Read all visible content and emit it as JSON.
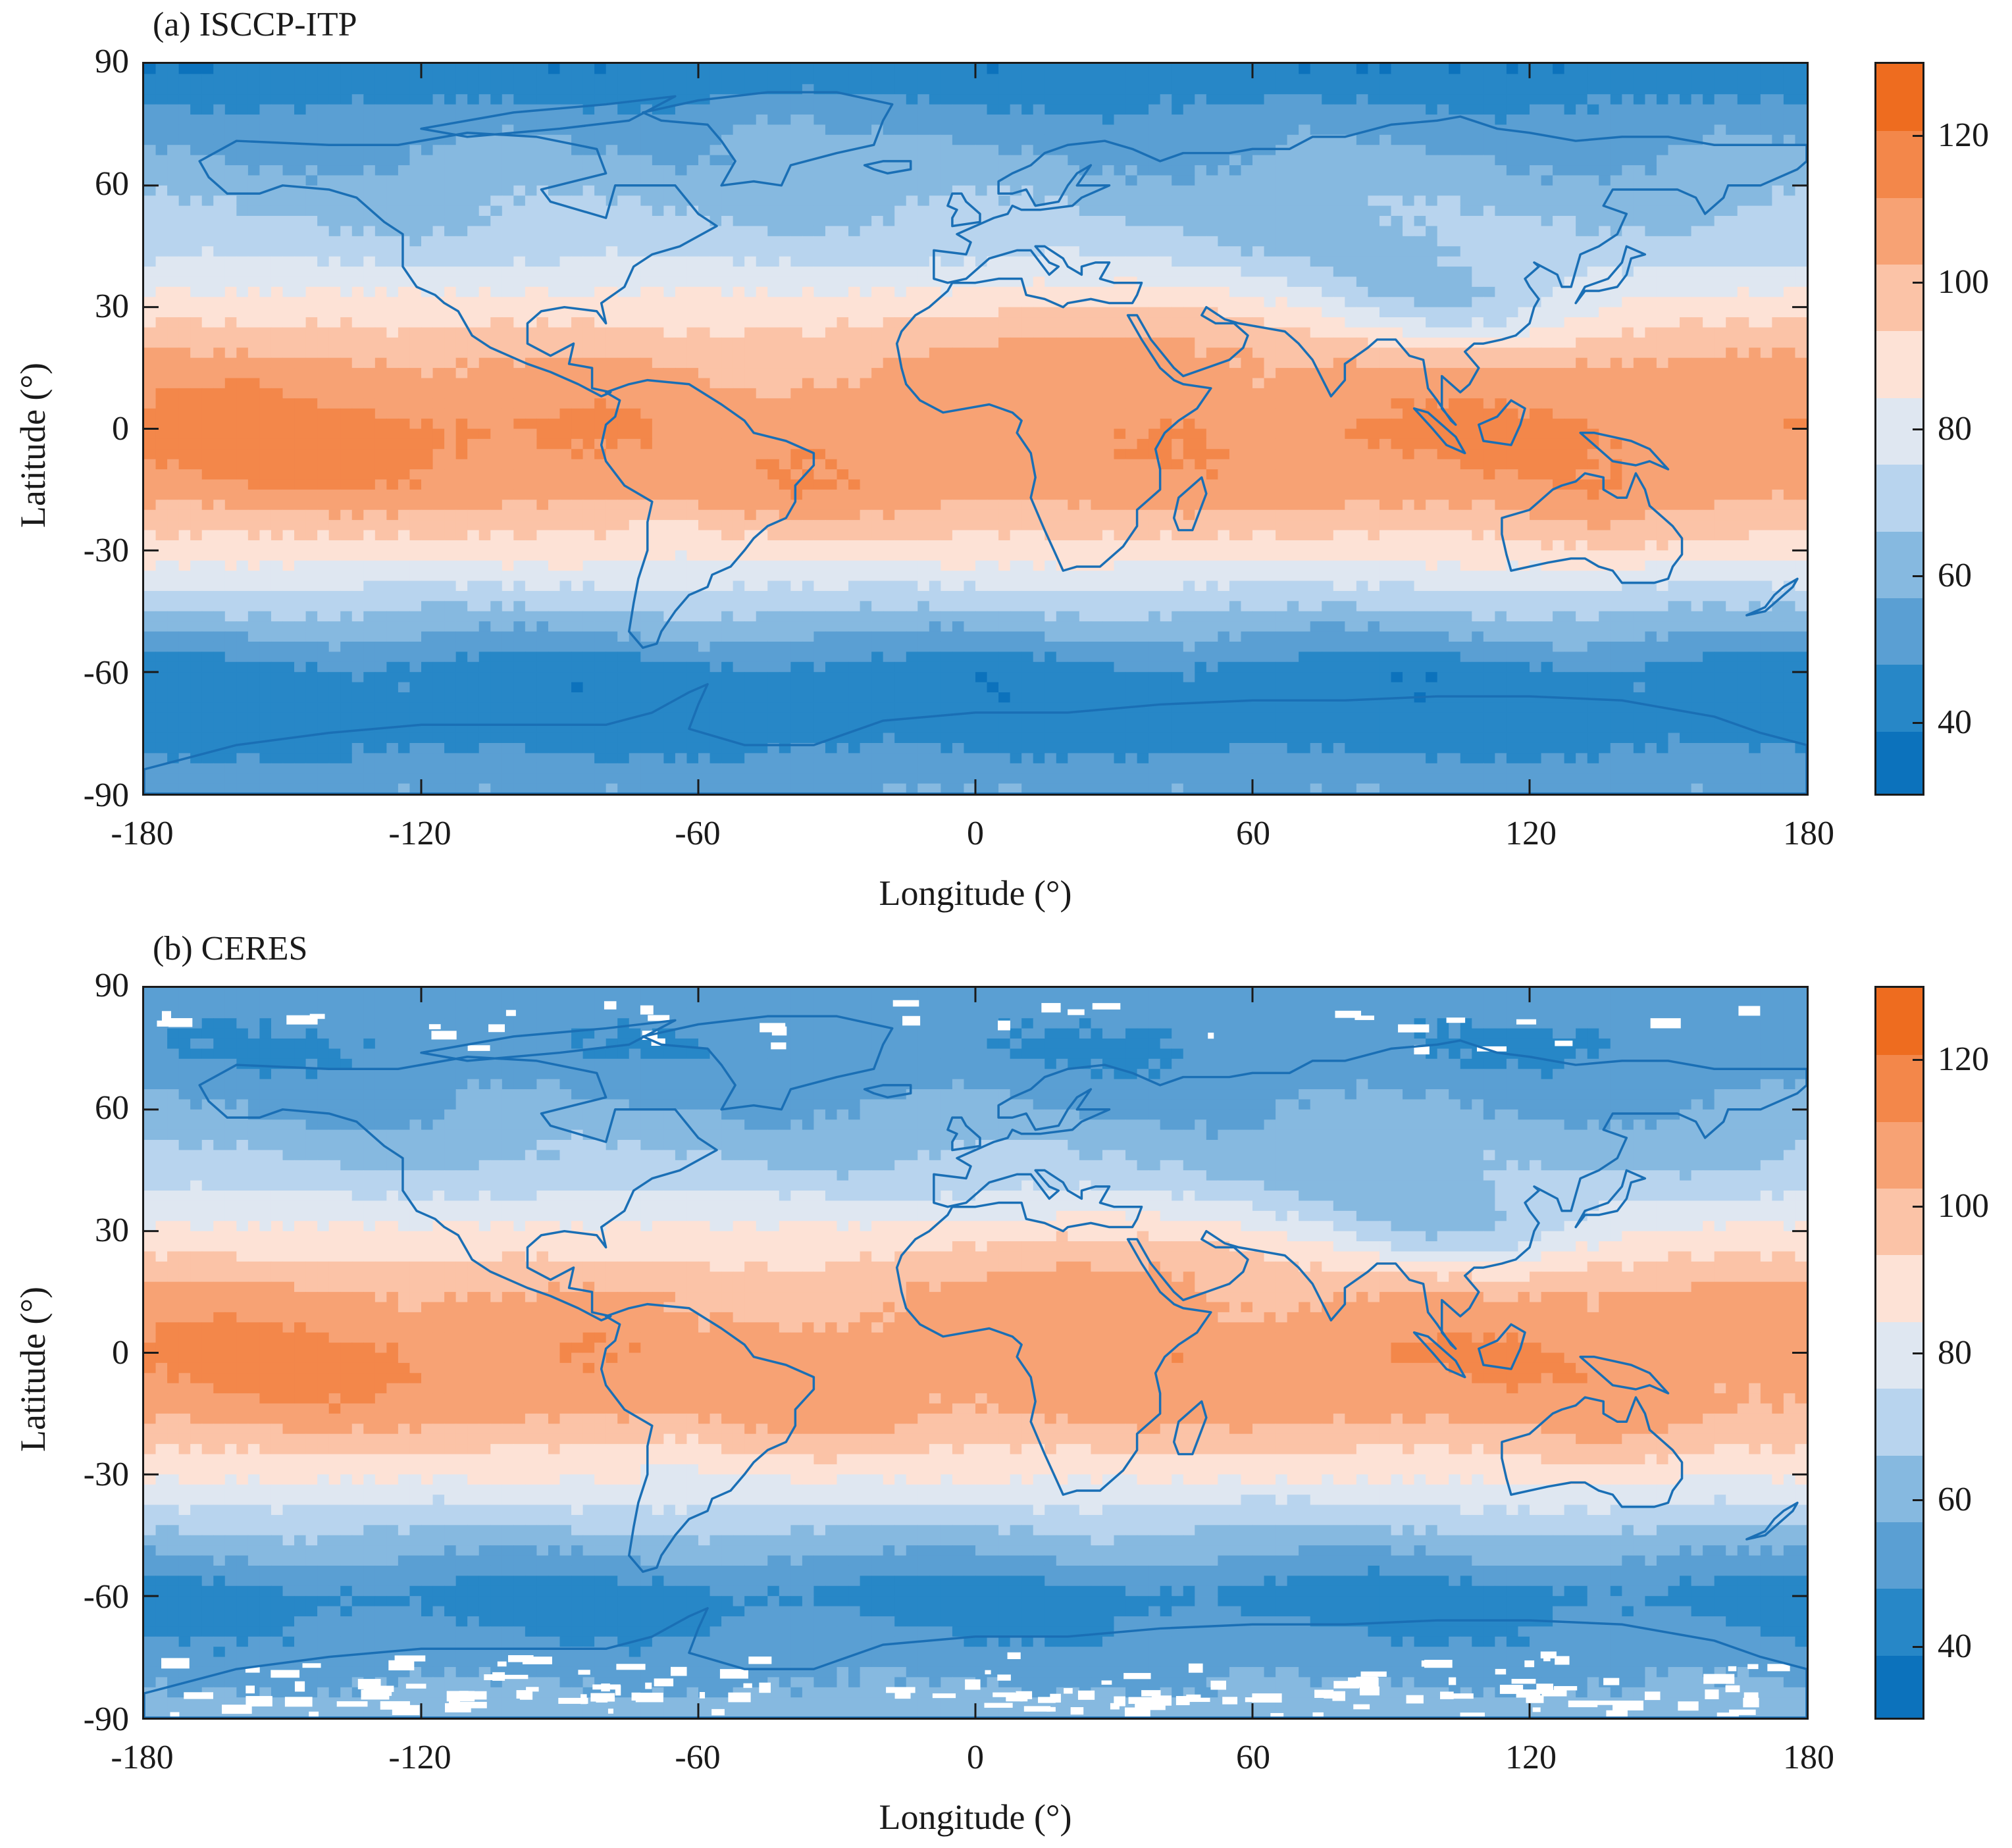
{
  "panels": [
    {
      "title": "(a) ISCCP-ITP",
      "ylabel": "Latitude (°)",
      "xlabel": "Longitude (°)",
      "xticks": [
        "-180",
        "-120",
        "-60",
        "0",
        "60",
        "120",
        "180"
      ],
      "yticks": [
        "90",
        "60",
        "30",
        "0",
        "-30",
        "-60",
        "-90"
      ],
      "colorbar_ticks": [
        "120",
        "100",
        "80",
        "60",
        "40"
      ],
      "white_gaps": false
    },
    {
      "title": "(b) CERES",
      "ylabel": "Latitude (°)",
      "xlabel": "Longitude (°)",
      "xticks": [
        "-180",
        "-120",
        "-60",
        "0",
        "60",
        "120",
        "180"
      ],
      "yticks": [
        "90",
        "60",
        "30",
        "0",
        "-30",
        "-60",
        "-90"
      ],
      "colorbar_ticks": [
        "120",
        "100",
        "80",
        "60",
        "40"
      ],
      "white_gaps": true
    }
  ],
  "map": {
    "projection": "equirectangular",
    "xlim": [
      -180,
      180
    ],
    "ylim": [
      -90,
      90
    ],
    "colormap": {
      "range": [
        30,
        130
      ],
      "step": 10,
      "colors": [
        "#0c72bc",
        "#2787c7",
        "#5a9fd3",
        "#86b9e0",
        "#b8d4ee",
        "#dfe7f1",
        "#fde2d6",
        "#fbc3a7",
        "#f7a274",
        "#f3874a",
        "#ee6c1f"
      ]
    },
    "coastline_color": "#1a6fb5"
  },
  "chart_data": [
    {
      "type": "heatmap",
      "title": "(a) ISCCP-ITP",
      "xlabel": "Longitude (°)",
      "ylabel": "Latitude (°)",
      "xlim": [
        -180,
        180
      ],
      "ylim": [
        -90,
        90
      ],
      "colorbar_range": [
        30,
        130
      ],
      "colorbar_ticks": [
        40,
        60,
        80,
        100,
        120
      ],
      "zonal_profile": {
        "lat": [
          90,
          75,
          60,
          45,
          30,
          15,
          0,
          -15,
          -30,
          -45,
          -60,
          -75,
          -90
        ],
        "value": [
          40,
          55,
          65,
          75,
          95,
          110,
          120,
          115,
          95,
          70,
          45,
          45,
          60
        ]
      }
    },
    {
      "type": "heatmap",
      "title": "(b) CERES",
      "xlabel": "Longitude (°)",
      "ylabel": "Latitude (°)",
      "xlim": [
        -180,
        180
      ],
      "ylim": [
        -90,
        90
      ],
      "colorbar_range": [
        30,
        130
      ],
      "colorbar_ticks": [
        40,
        60,
        80,
        100,
        120
      ],
      "zonal_profile": {
        "lat": [
          90,
          75,
          60,
          45,
          30,
          15,
          0,
          -15,
          -30,
          -45,
          -60,
          -75,
          -90
        ],
        "value": [
          55,
          50,
          60,
          72,
          92,
          108,
          118,
          112,
          92,
          68,
          45,
          55,
          65
        ]
      }
    }
  ]
}
